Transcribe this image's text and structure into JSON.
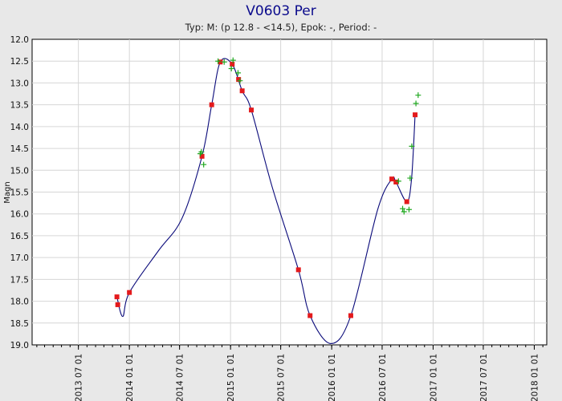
{
  "chart_data": {
    "type": "scatter",
    "title": "V0603 Per",
    "subtitle": "Typ: M: (p 12.8 - <14.5), Epok: -, Period: -",
    "xlabel": "",
    "ylabel": "Magn",
    "x_type": "date",
    "xlim": [
      "2013-01-15",
      "2018-02-15"
    ],
    "ylim": [
      19.0,
      12.0
    ],
    "y_inverted": true,
    "grid": true,
    "legend": "none",
    "x_ticks": [
      "2013 07 01",
      "2014 01 01",
      "2014 07 01",
      "2015 01 01",
      "2015 07 01",
      "2016 01 01",
      "2016 07 01",
      "2017 01 01",
      "2017 07 01",
      "2018 01 01"
    ],
    "y_ticks": [
      "12.0",
      "12.5",
      "13.0",
      "13.5",
      "14.0",
      "14.5",
      "15.0",
      "15.5",
      "16.0",
      "16.5",
      "17.0",
      "17.5",
      "18.0",
      "18.5",
      "19.0"
    ],
    "series": [
      {
        "marker": "square",
        "color": "#e41a1c",
        "points": [
          {
            "x": "2013-11-17",
            "y": 17.9
          },
          {
            "x": "2013-11-20",
            "y": 18.08
          },
          {
            "x": "2014-01-01",
            "y": 17.8
          },
          {
            "x": "2014-09-20",
            "y": 14.68
          },
          {
            "x": "2014-10-25",
            "y": 13.5
          },
          {
            "x": "2014-11-25",
            "y": 12.52
          },
          {
            "x": "2015-01-07",
            "y": 12.57
          },
          {
            "x": "2015-01-30",
            "y": 12.92
          },
          {
            "x": "2015-02-12",
            "y": 13.18
          },
          {
            "x": "2015-03-17",
            "y": 13.62
          },
          {
            "x": "2015-09-03",
            "y": 17.28
          },
          {
            "x": "2015-10-15",
            "y": 18.33
          },
          {
            "x": "2016-03-10",
            "y": 18.33
          },
          {
            "x": "2016-08-05",
            "y": 15.2
          },
          {
            "x": "2016-08-20",
            "y": 15.27
          },
          {
            "x": "2016-09-28",
            "y": 15.72
          },
          {
            "x": "2016-10-28",
            "y": 13.73
          }
        ]
      },
      {
        "marker": "plus",
        "color": "#1fa81f",
        "points": [
          {
            "x": "2014-09-14",
            "y": 14.62
          },
          {
            "x": "2014-09-18",
            "y": 14.58
          },
          {
            "x": "2014-09-26",
            "y": 14.87
          },
          {
            "x": "2014-11-17",
            "y": 12.5
          },
          {
            "x": "2014-12-09",
            "y": 12.52
          },
          {
            "x": "2015-01-04",
            "y": 12.67
          },
          {
            "x": "2015-01-10",
            "y": 12.48
          },
          {
            "x": "2015-01-28",
            "y": 12.77
          },
          {
            "x": "2015-02-04",
            "y": 12.95
          },
          {
            "x": "2016-08-29",
            "y": 15.25
          },
          {
            "x": "2016-09-13",
            "y": 15.88
          },
          {
            "x": "2016-09-18",
            "y": 15.95
          },
          {
            "x": "2016-10-06",
            "y": 15.9
          },
          {
            "x": "2016-10-10",
            "y": 15.18
          },
          {
            "x": "2016-10-16",
            "y": 14.45
          },
          {
            "x": "2016-10-31",
            "y": 13.47
          },
          {
            "x": "2016-11-08",
            "y": 13.28
          }
        ]
      }
    ],
    "fit_curve": {
      "color": "#0a0a7a",
      "points": [
        {
          "x": "2013-11-17",
          "y": 17.9
        },
        {
          "x": "2013-12-08",
          "y": 18.35
        },
        {
          "x": "2014-01-01",
          "y": 17.8
        },
        {
          "x": "2014-04-15",
          "y": 16.85
        },
        {
          "x": "2014-07-10",
          "y": 16.1
        },
        {
          "x": "2014-09-20",
          "y": 14.68
        },
        {
          "x": "2014-10-25",
          "y": 13.5
        },
        {
          "x": "2014-11-25",
          "y": 12.52
        },
        {
          "x": "2015-01-07",
          "y": 12.57
        },
        {
          "x": "2015-02-12",
          "y": 13.18
        },
        {
          "x": "2015-03-17",
          "y": 13.62
        },
        {
          "x": "2015-06-01",
          "y": 15.4
        },
        {
          "x": "2015-09-03",
          "y": 17.28
        },
        {
          "x": "2015-10-15",
          "y": 18.33
        },
        {
          "x": "2015-12-29",
          "y": 18.97
        },
        {
          "x": "2016-03-10",
          "y": 18.33
        },
        {
          "x": "2016-06-15",
          "y": 15.9
        },
        {
          "x": "2016-08-05",
          "y": 15.2
        },
        {
          "x": "2016-08-20",
          "y": 15.27
        },
        {
          "x": "2016-09-28",
          "y": 15.72
        },
        {
          "x": "2016-10-15",
          "y": 15.2
        },
        {
          "x": "2016-10-28",
          "y": 13.73
        }
      ]
    }
  }
}
